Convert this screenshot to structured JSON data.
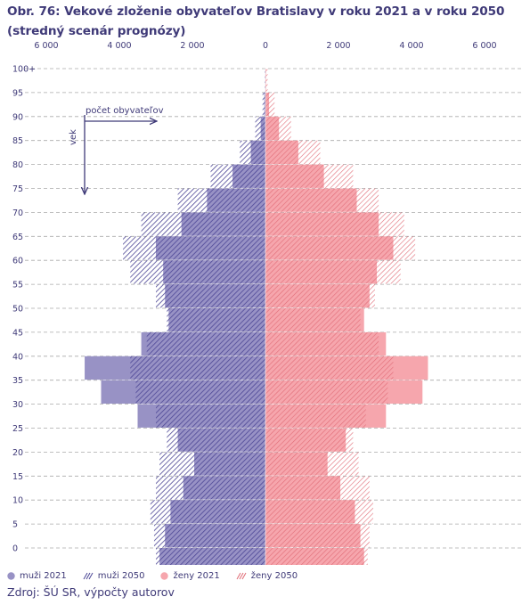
{
  "title": "Obr. 76: Vekové zloženie obyvateľov Bratislavy v roku 2021 a v roku 2050 (stredný scenár prognózy)",
  "source": "Zdroj: ŠÚ SR, výpočty autorov",
  "colors": {
    "men2021": "#9892c5",
    "men2050": "#4c4695",
    "women2021": "#f6a6ad",
    "women2050": "#e06a75",
    "text": "#3f3a78",
    "grid": "#aaaaaa"
  },
  "chart_data": {
    "type": "bar",
    "orientation": "population-pyramid",
    "title": "Obr. 76: Vekové zloženie obyvateľov Bratislavy v roku 2021 a v roku 2050 (stredný scenár prognózy)",
    "xlim": [
      -6000,
      6000
    ],
    "x_ticks": [
      "6 000",
      "4 000",
      "2 000",
      "0",
      "2 000",
      "4 000",
      "6 000"
    ],
    "y_ticks": [
      "100+",
      "95",
      "90",
      "85",
      "80",
      "75",
      "70",
      "65",
      "60",
      "55",
      "50",
      "45",
      "40",
      "35",
      "30",
      "25",
      "20",
      "15",
      "10",
      "5",
      "0"
    ],
    "age_groups": [
      "0-4",
      "5-9",
      "10-14",
      "15-19",
      "20-24",
      "25-29",
      "30-34",
      "35-39",
      "40-44",
      "45-49",
      "50-54",
      "55-59",
      "60-64",
      "65-69",
      "70-74",
      "75-79",
      "80-84",
      "85-89",
      "90-94",
      "95-99",
      "100+"
    ],
    "annotation_x": "počet obyvateľov",
    "annotation_y": "vek",
    "legend": [
      "muži 2021",
      "muži 2050",
      "ženy 2021",
      "ženy 2050"
    ],
    "series": [
      {
        "name": "muži 2021",
        "values": [
          2900,
          2750,
          2600,
          2250,
          1950,
          2400,
          3500,
          4500,
          4950,
          3400,
          2650,
          2750,
          2800,
          3000,
          2300,
          1600,
          900,
          400,
          130,
          30,
          5
        ]
      },
      {
        "name": "muži 2050",
        "values": [
          3000,
          3050,
          3150,
          3000,
          2900,
          2700,
          3000,
          3550,
          3700,
          3250,
          2700,
          3000,
          3700,
          3900,
          3400,
          2400,
          1500,
          700,
          280,
          80,
          20
        ]
      },
      {
        "name": "ženy 2021",
        "values": [
          2700,
          2600,
          2450,
          2050,
          1700,
          2200,
          3300,
          4300,
          4450,
          3300,
          2700,
          2850,
          3050,
          3500,
          3100,
          2500,
          1600,
          900,
          370,
          100,
          20
        ]
      },
      {
        "name": "ženy 2050",
        "values": [
          2800,
          2850,
          2950,
          2850,
          2550,
          2400,
          2750,
          3350,
          3500,
          3100,
          2600,
          3000,
          3700,
          4100,
          3800,
          3100,
          2400,
          1500,
          700,
          250,
          60
        ]
      }
    ]
  }
}
